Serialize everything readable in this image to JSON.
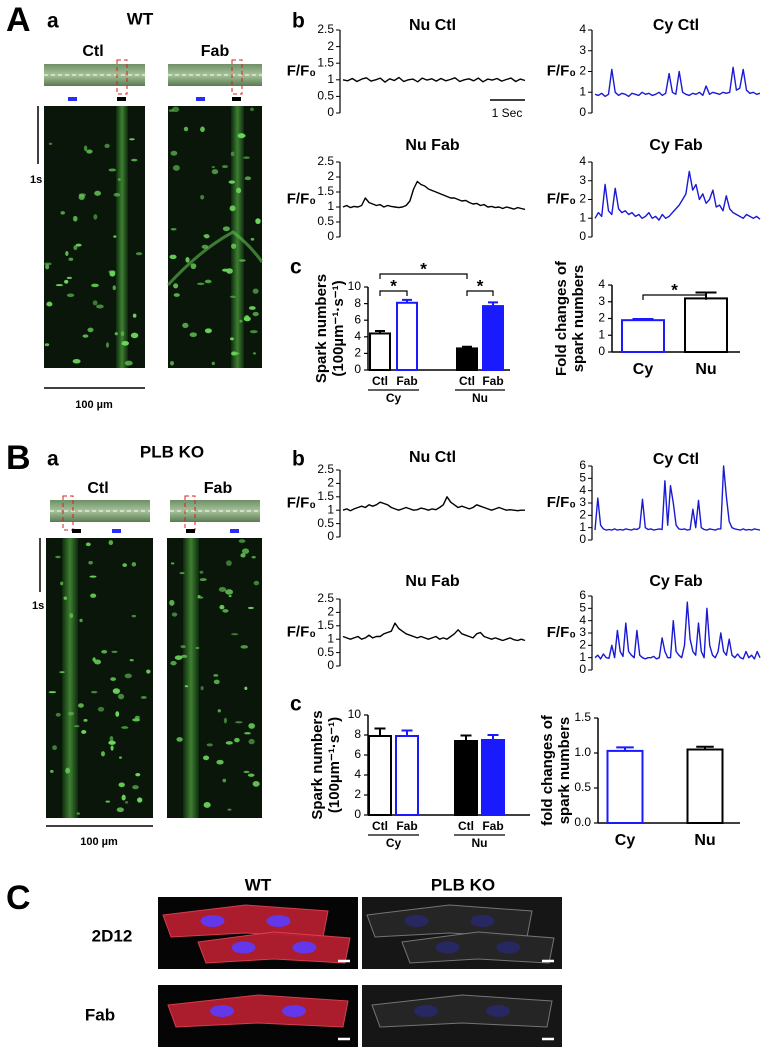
{
  "panel_A": {
    "label": "A",
    "a": {
      "label": "a",
      "genotype": "WT",
      "conditions": [
        "Ctl",
        "Fab"
      ],
      "time_scale": "1s",
      "length_scale": "100 µm"
    },
    "b": {
      "label": "b",
      "scale_bar": "1 Sec",
      "traces": [
        {
          "type": "line",
          "title": "Nu Ctl",
          "ylabel": "F/F₀",
          "color": "#000000",
          "ylim": [
            0,
            2.5
          ],
          "yticks": [
            0,
            0.5,
            1,
            1.5,
            2,
            2.5
          ],
          "values": [
            1.0,
            0.97,
            1.04,
            0.95,
            1.02,
            1.06,
            0.96,
            1.0,
            1.05,
            0.93,
            1.03,
            0.98,
            1.07,
            0.95,
            1.0,
            1.02,
            0.94,
            1.05,
            0.99,
            1.03,
            0.96,
            1.04,
            0.97,
            1.01,
            1.06,
            0.95,
            1.0,
            1.03,
            0.97,
            1.05,
            0.94,
            1.02,
            0.99,
            1.04,
            0.96,
            1.01,
            1.05,
            0.95,
            1.02,
            0.98
          ]
        },
        {
          "type": "line",
          "title": "Cy Ctl",
          "ylabel": "F/F₀",
          "color": "#1a1ad6",
          "ylim": [
            0,
            4
          ],
          "yticks": [
            0,
            1,
            2,
            3,
            4
          ],
          "values": [
            0.9,
            0.85,
            0.95,
            0.8,
            0.9,
            2.1,
            1.0,
            0.85,
            0.95,
            0.9,
            0.8,
            0.95,
            0.9,
            0.85,
            1.0,
            0.9,
            0.95,
            0.85,
            0.9,
            1.0,
            0.85,
            0.95,
            1.9,
            1.0,
            0.9,
            2.0,
            1.0,
            0.9,
            0.85,
            0.95,
            0.9,
            1.0,
            0.85,
            1.3,
            0.9,
            1.0,
            0.95,
            0.9,
            1.0,
            0.95,
            1.0,
            2.2,
            1.1,
            1.2,
            2.1,
            1.1,
            0.95,
            1.0,
            0.9,
            0.95
          ]
        },
        {
          "type": "line",
          "title": "Nu Fab",
          "ylabel": "F/F₀",
          "color": "#000000",
          "ylim": [
            0,
            2.5
          ],
          "yticks": [
            0,
            0.5,
            1,
            1.5,
            2,
            2.5
          ],
          "values": [
            1.0,
            1.05,
            0.98,
            1.02,
            1.0,
            1.05,
            1.3,
            1.15,
            1.1,
            1.05,
            1.08,
            1.0,
            1.05,
            1.02,
            1.0,
            0.98,
            1.0,
            1.05,
            1.2,
            1.6,
            1.85,
            1.75,
            1.7,
            1.6,
            1.55,
            1.5,
            1.45,
            1.4,
            1.35,
            1.3,
            1.3,
            1.25,
            1.2,
            1.22,
            1.15,
            1.1,
            1.12,
            1.05,
            1.08,
            1.0,
            1.02,
            0.98,
            1.0,
            0.95,
            1.0,
            0.97,
            0.93,
            0.98,
            0.95,
            0.92
          ]
        },
        {
          "type": "line",
          "title": "Cy Fab",
          "ylabel": "F/F₀",
          "color": "#1a1ad6",
          "ylim": [
            0,
            4
          ],
          "yticks": [
            0,
            1,
            2,
            3,
            4
          ],
          "values": [
            1.0,
            1.3,
            1.1,
            2.8,
            1.4,
            1.2,
            2.6,
            1.5,
            1.3,
            1.4,
            1.2,
            1.3,
            1.1,
            1.2,
            1.0,
            1.1,
            1.3,
            1.0,
            1.1,
            0.9,
            1.2,
            1.0,
            1.1,
            1.3,
            1.5,
            1.7,
            2.0,
            2.3,
            3.5,
            2.5,
            2.8,
            2.0,
            2.3,
            1.8,
            2.0,
            2.5,
            1.6,
            1.7,
            1.4,
            2.2,
            1.5,
            1.3,
            1.2,
            1.1,
            1.0,
            1.2,
            1.1,
            1.0,
            1.1,
            0.95
          ]
        }
      ]
    },
    "c": {
      "label": "c",
      "charts": [
        {
          "type": "bar",
          "ylabel": [
            "Spark numbers",
            "(100µm⁻¹·s⁻¹)"
          ],
          "categories": [
            "Ctl",
            "Fab",
            "Ctl",
            "Fab"
          ],
          "groups": [
            "Cy",
            "Nu"
          ],
          "values": [
            4.4,
            8.1,
            2.6,
            7.7
          ],
          "errors": [
            0.3,
            0.35,
            0.2,
            0.45
          ],
          "colors": [
            "#000000",
            "#1a1aff",
            "#000000",
            "#1a1aff"
          ],
          "filled": [
            false,
            false,
            true,
            true
          ],
          "ylim": [
            0,
            10
          ],
          "yticks": [
            0,
            2,
            4,
            6,
            8,
            10
          ],
          "significance": [
            "*",
            "*",
            "*"
          ]
        },
        {
          "type": "bar",
          "ylabel": [
            "Fold changes of",
            "spark numbers"
          ],
          "categories": [
            "Cy",
            "Nu"
          ],
          "values": [
            1.9,
            3.2
          ],
          "errors": [
            0.07,
            0.35
          ],
          "colors": [
            "#1a1aff",
            "#000000"
          ],
          "filled": [
            false,
            false
          ],
          "ylim": [
            0,
            4
          ],
          "yticks": [
            0,
            1,
            2,
            3,
            4
          ],
          "significance": [
            "*"
          ]
        }
      ]
    }
  },
  "panel_B": {
    "label": "B",
    "a": {
      "label": "a",
      "genotype": "PLB KO",
      "conditions": [
        "Ctl",
        "Fab"
      ],
      "time_scale": "1s",
      "length_scale": "100 µm"
    },
    "b": {
      "label": "b",
      "traces": [
        {
          "type": "line",
          "title": "Nu Ctl",
          "ylabel": "F/F₀",
          "color": "#000000",
          "ylim": [
            0,
            2.5
          ],
          "yticks": [
            0,
            0.5,
            1,
            1.5,
            2,
            2.5
          ],
          "values": [
            1.0,
            1.05,
            0.98,
            1.05,
            1.1,
            1.15,
            1.1,
            1.2,
            1.15,
            1.2,
            1.3,
            1.25,
            1.2,
            1.1,
            1.05,
            1.0,
            1.05,
            1.1,
            1.05,
            1.0,
            1.02,
            1.08,
            1.05,
            1.0,
            1.05,
            1.02,
            1.1,
            1.2,
            1.5,
            1.3,
            1.2,
            1.1,
            1.15,
            1.1,
            1.05,
            1.1,
            1.2,
            1.15,
            1.1,
            1.05,
            1.0,
            1.05,
            1.1,
            1.05,
            1.0,
            1.02,
            1.0,
            0.98,
            1.0,
            1.0
          ]
        },
        {
          "type": "line",
          "title": "Cy Ctl",
          "ylabel": "F/F₀",
          "color": "#1a1ad6",
          "ylim": [
            0,
            6
          ],
          "yticks": [
            0,
            1,
            2,
            3,
            4,
            5,
            6
          ],
          "values": [
            0.8,
            3.4,
            1.2,
            0.9,
            0.8,
            0.85,
            0.8,
            0.9,
            0.8,
            0.85,
            0.8,
            0.9,
            0.85,
            0.8,
            0.9,
            0.85,
            1.0,
            3.3,
            1.0,
            0.85,
            0.9,
            0.8,
            0.85,
            0.9,
            0.85,
            4.8,
            1.2,
            4.4,
            3.0,
            1.2,
            0.9,
            0.85,
            0.9,
            0.8,
            0.85,
            2.5,
            1.0,
            3.2,
            1.0,
            0.85,
            0.8,
            0.9,
            0.85,
            0.8,
            0.9,
            0.9,
            6.0,
            3.5,
            1.5,
            1.0,
            0.9,
            0.85,
            0.8,
            0.9,
            0.8,
            0.85,
            0.8,
            0.9,
            0.85,
            0.8
          ]
        },
        {
          "type": "line",
          "title": "Nu Fab",
          "ylabel": "F/F₀",
          "color": "#000000",
          "ylim": [
            0,
            2.5
          ],
          "yticks": [
            0,
            0.5,
            1,
            1.5,
            2,
            2.5
          ],
          "values": [
            1.1,
            1.05,
            1.0,
            1.05,
            1.1,
            1.0,
            1.05,
            1.15,
            1.05,
            1.1,
            1.1,
            1.2,
            1.25,
            1.3,
            1.6,
            1.4,
            1.3,
            1.2,
            1.15,
            1.1,
            1.05,
            1.1,
            1.05,
            1.0,
            1.05,
            1.1,
            1.0,
            1.05,
            1.0,
            1.1,
            1.2,
            1.35,
            1.2,
            1.15,
            1.1,
            1.05,
            1.2,
            1.25,
            1.1,
            1.05,
            1.0,
            1.05,
            1.0,
            0.95,
            1.0,
            1.05,
            0.98,
            0.95,
            1.0,
            0.95
          ]
        },
        {
          "type": "line",
          "title": "Cy Fab",
          "ylabel": "F/F₀",
          "color": "#1a1ad6",
          "ylim": [
            0,
            6
          ],
          "yticks": [
            0,
            1,
            2,
            3,
            4,
            5,
            6
          ],
          "values": [
            1.0,
            1.2,
            0.9,
            1.3,
            1.0,
            0.95,
            2.0,
            1.0,
            3.2,
            1.5,
            1.1,
            3.8,
            1.5,
            1.2,
            1.0,
            3.2,
            1.2,
            1.0,
            0.9,
            1.0,
            1.0,
            1.1,
            0.9,
            1.0,
            2.6,
            1.5,
            1.0,
            1.0,
            4.0,
            1.5,
            1.2,
            1.0,
            2.0,
            5.5,
            2.5,
            1.5,
            1.2,
            3.8,
            1.5,
            1.0,
            5.0,
            2.0,
            1.2,
            1.0,
            1.5,
            3.0,
            1.5,
            1.2,
            2.5,
            1.2,
            1.0,
            1.3,
            1.0,
            0.9,
            1.5,
            1.0,
            1.2,
            0.9,
            1.5,
            1.0
          ]
        }
      ]
    },
    "c": {
      "label": "c",
      "charts": [
        {
          "type": "bar",
          "ylabel": [
            "Spark numbers",
            "(100µm⁻¹·s⁻¹)"
          ],
          "categories": [
            "Ctl",
            "Fab",
            "Ctl",
            "Fab"
          ],
          "groups": [
            "Cy",
            "Nu"
          ],
          "values": [
            7.9,
            7.9,
            7.4,
            7.5
          ],
          "errors": [
            0.75,
            0.55,
            0.55,
            0.5
          ],
          "colors": [
            "#000000",
            "#1a1aff",
            "#000000",
            "#1a1aff"
          ],
          "filled": [
            false,
            false,
            true,
            true
          ],
          "ylim": [
            0,
            10
          ],
          "yticks": [
            0,
            2,
            4,
            6,
            8,
            10
          ]
        },
        {
          "type": "bar",
          "ylabel": [
            "fold changes of",
            "spark numbers"
          ],
          "categories": [
            "Cy",
            "Nu"
          ],
          "values": [
            1.03,
            1.05
          ],
          "errors": [
            0.05,
            0.04
          ],
          "colors": [
            "#1a1aff",
            "#000000"
          ],
          "filled": [
            false,
            false
          ],
          "ylim": [
            0,
            1.5
          ],
          "yticks": [
            {
              "value": 0,
              "label": "0.0"
            },
            {
              "value": 0.5,
              "label": "0.5"
            },
            {
              "value": 1,
              "label": "1.0"
            },
            {
              "value": 1.5,
              "label": "1.5"
            }
          ]
        }
      ]
    }
  },
  "panel_C": {
    "label": "C",
    "columns": [
      "WT",
      "PLB KO"
    ],
    "rows": [
      "2D12",
      "Fab"
    ]
  }
}
